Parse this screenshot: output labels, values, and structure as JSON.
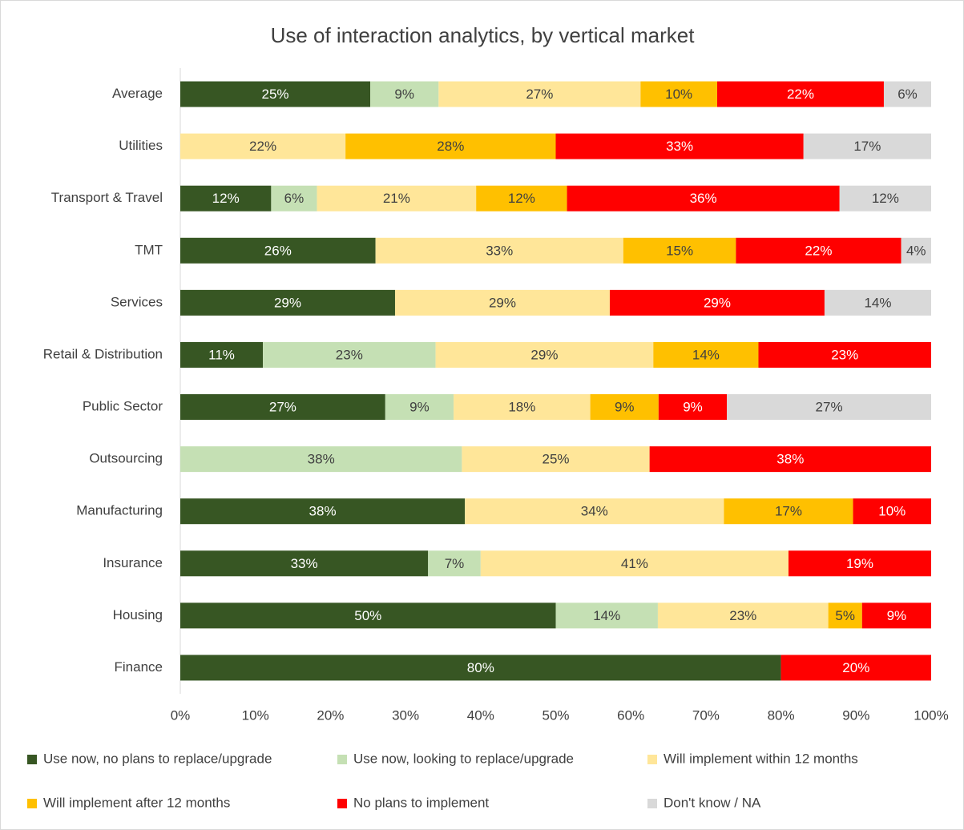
{
  "chart_data": {
    "type": "stacked_bar_horizontal",
    "title": "Use of interaction analytics, by vertical market",
    "categories": [
      "Average",
      "Utilities",
      "Transport & Travel",
      "TMT",
      "Services",
      "Retail & Distribution",
      "Public Sector",
      "Outsourcing",
      "Manufacturing",
      "Insurance",
      "Housing",
      "Finance"
    ],
    "series": [
      {
        "name": "Use now, no plans to replace/upgrade",
        "color": "#375623",
        "values": [
          25.3,
          null,
          12.1,
          26,
          28.6,
          11,
          27.3,
          null,
          37.9,
          33,
          50,
          80
        ],
        "value_labels": [
          "25%",
          null,
          "12%",
          "26%",
          "29%",
          "11%",
          "27%",
          null,
          "38%",
          "33%",
          "50%",
          "80%"
        ]
      },
      {
        "name": "Use now, looking to replace/upgrade",
        "color": "#c5e0b4",
        "values": [
          9.1,
          null,
          6.1,
          null,
          null,
          23,
          9.1,
          37.5,
          null,
          7,
          13.6,
          null
        ],
        "value_labels": [
          "9%",
          null,
          "6%",
          null,
          null,
          "23%",
          "9%",
          "38%",
          null,
          "7%",
          "14%",
          null
        ]
      },
      {
        "name": "Will implement within 12 months",
        "color": "#ffe699",
        "values": [
          26.9,
          22,
          21.2,
          33,
          28.6,
          29,
          18.2,
          25,
          34.5,
          41,
          22.7,
          null
        ],
        "value_labels": [
          "27%",
          "22%",
          "21%",
          "33%",
          "29%",
          "29%",
          "18%",
          "25%",
          "34%",
          "41%",
          "23%",
          null
        ]
      },
      {
        "name": "Will implement after 12 months",
        "color": "#ffc000",
        "values": [
          10.2,
          28,
          12.1,
          15,
          null,
          14,
          9.1,
          null,
          17.2,
          null,
          4.5,
          null
        ],
        "value_labels": [
          "10%",
          "28%",
          "12%",
          "15%",
          null,
          "14%",
          "9%",
          null,
          "17%",
          null,
          "5%",
          null
        ]
      },
      {
        "name": "No plans to implement",
        "color": "#ff0000",
        "values": [
          22.2,
          33,
          36.3,
          22,
          28.6,
          23,
          9.1,
          37.5,
          10.4,
          19,
          9.2,
          20
        ],
        "value_labels": [
          "22%",
          "33%",
          "36%",
          "22%",
          "29%",
          "23%",
          "9%",
          "38%",
          "10%",
          "19%",
          "9%",
          "20%"
        ]
      },
      {
        "name": "Don't know / NA",
        "color": "#d9d9d9",
        "values": [
          6.3,
          17,
          12.2,
          4,
          14.2,
          null,
          27.2,
          null,
          null,
          null,
          null,
          null
        ],
        "value_labels": [
          "6%",
          "17%",
          "12%",
          "4%",
          "14%",
          null,
          "27%",
          null,
          null,
          null,
          null,
          null
        ]
      }
    ],
    "xlim": [
      0,
      100
    ],
    "xticks": [
      {
        "value": 0,
        "label": "0%"
      },
      {
        "value": 10,
        "label": "10%"
      },
      {
        "value": 20,
        "label": "20%"
      },
      {
        "value": 30,
        "label": "30%"
      },
      {
        "value": 40,
        "label": "40%"
      },
      {
        "value": 50,
        "label": "50%"
      },
      {
        "value": 60,
        "label": "60%"
      },
      {
        "value": 70,
        "label": "70%"
      },
      {
        "value": 80,
        "label": "80%"
      },
      {
        "value": 90,
        "label": "90%"
      },
      {
        "value": 100,
        "label": "100%"
      }
    ],
    "grid": false,
    "legend": "bottom"
  }
}
